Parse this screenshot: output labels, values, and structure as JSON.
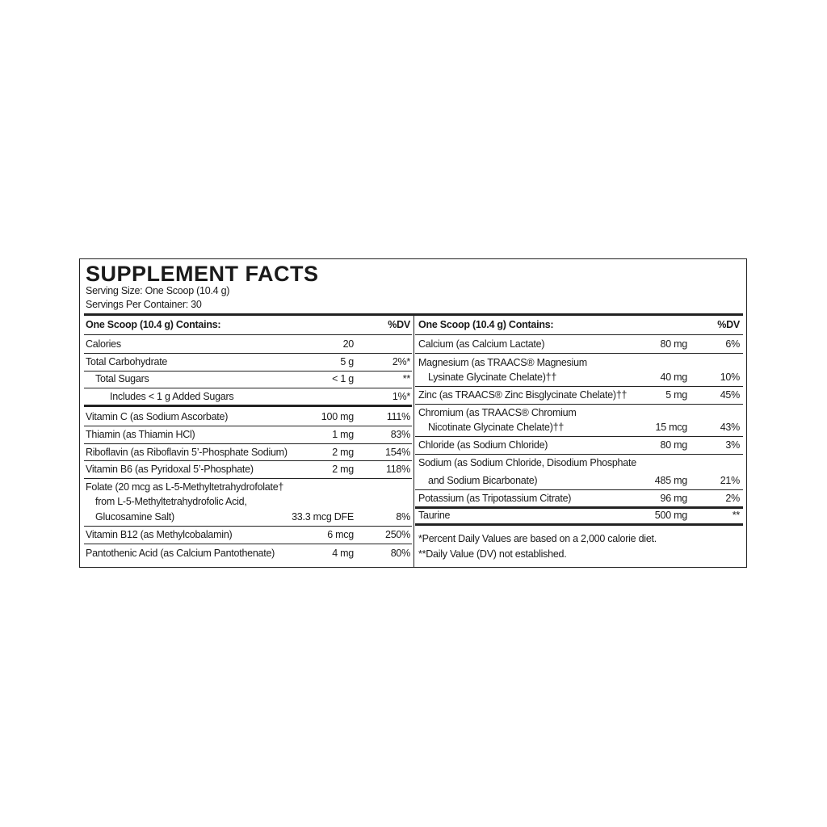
{
  "title": "SUPPLEMENT FACTS",
  "serving_size": "Serving Size: One Scoop (10.4 g)",
  "servings_per_container": "Servings Per Container: 30",
  "left": {
    "header": {
      "label": "One Scoop (10.4 g) Contains:",
      "dv": "%DV"
    },
    "rows": [
      {
        "lines": [
          "Calories"
        ],
        "amount": "20"
      },
      {
        "lines": [
          "Total Carbohydrate"
        ],
        "amount": "5 g",
        "dv": "2%*"
      },
      {
        "lines": [
          "Total Sugars"
        ],
        "amount": "< 1 g",
        "dv": "**"
      },
      {
        "lines": [
          "Includes < 1 g Added Sugars"
        ],
        "dv": "1%*"
      },
      {
        "lines": [
          "Vitamin C (as Sodium Ascorbate)"
        ],
        "amount": "100 mg",
        "dv": "111%"
      },
      {
        "lines": [
          "Thiamin (as Thiamin HCl)"
        ],
        "amount": "1 mg",
        "dv": "83%"
      },
      {
        "lines": [
          "Riboflavin (as Riboflavin 5’-Phosphate Sodium)"
        ],
        "amount": "2 mg",
        "dv": "154%"
      },
      {
        "lines": [
          "Vitamin B6 (as Pyridoxal 5’-Phosphate)"
        ],
        "amount": "2 mg",
        "dv": "118%"
      },
      {
        "lines": [
          "Folate (20 mcg as L-5-Methyltetrahydrofolate†",
          "from L-5-Methyltetrahydrofolic Acid,",
          "Glucosamine Salt)"
        ],
        "amount": "33.3 mcg DFE",
        "dv": "8%"
      },
      {
        "lines": [
          "Vitamin B12 (as Methylcobalamin)"
        ],
        "amount": "6 mcg",
        "dv": "250%"
      },
      {
        "lines": [
          "Pantothenic Acid (as Calcium Pantothenate)"
        ],
        "amount": "4 mg",
        "dv": "80%"
      }
    ]
  },
  "right": {
    "header": {
      "label": "One Scoop (10.4 g) Contains:",
      "dv": "%DV"
    },
    "rows": [
      {
        "lines": [
          "Calcium (as Calcium Lactate)"
        ],
        "amount": "80 mg",
        "dv": "6%"
      },
      {
        "lines": [
          "Magnesium (as TRAACS® Magnesium",
          "Lysinate Glycinate Chelate)††"
        ],
        "amount": "40 mg",
        "dv": "10%"
      },
      {
        "lines": [
          "Zinc (as TRAACS® Zinc Bisglycinate Chelate)††"
        ],
        "amount": "5 mg",
        "dv": "45%"
      },
      {
        "lines": [
          "Chromium (as TRAACS® Chromium",
          "Nicotinate Glycinate Chelate)††"
        ],
        "amount": "15 mcg",
        "dv": "43%"
      },
      {
        "lines": [
          "Chloride (as Sodium Chloride)"
        ],
        "amount": "80 mg",
        "dv": "3%"
      },
      {
        "lines": [
          "Sodium (as Sodium Chloride, Disodium Phosphate",
          "and Sodium Bicarbonate)"
        ],
        "amount": "485 mg",
        "dv": "21%"
      },
      {
        "lines": [
          "Potassium (as Tripotassium Citrate)"
        ],
        "amount": "96 mg",
        "dv": "2%"
      },
      {
        "lines": [
          "Taurine"
        ],
        "amount": "500 mg",
        "dv": "**"
      }
    ],
    "footnotes": [
      "*Percent Daily Values are based on a 2,000 calorie diet.",
      "**Daily Value (DV) not established."
    ]
  }
}
